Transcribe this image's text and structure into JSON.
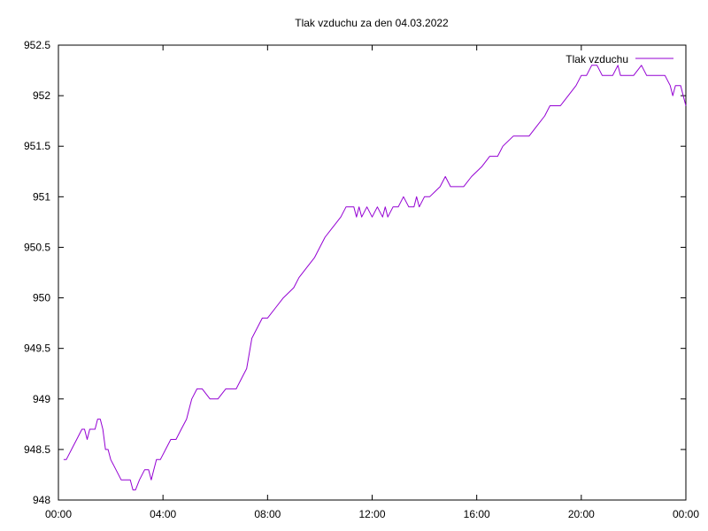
{
  "chart_data": {
    "type": "line",
    "title": "Tlak vzduchu za den 04.03.2022",
    "xlabel": "",
    "ylabel": "",
    "legend_position": "top-right",
    "grid": false,
    "line_color": "#9400d3",
    "xlim_hours": [
      0,
      24
    ],
    "x_tick_hours": [
      0,
      4,
      8,
      12,
      16,
      20,
      24
    ],
    "x_tick_labels": [
      "00:00",
      "04:00",
      "08:00",
      "12:00",
      "16:00",
      "20:00",
      "00:00"
    ],
    "ylim": [
      948,
      952.5
    ],
    "y_ticks": [
      948,
      948.5,
      949,
      949.5,
      950,
      950.5,
      951,
      951.5,
      952,
      952.5
    ],
    "y_tick_labels": [
      "948",
      "948.5",
      "949",
      "949.5",
      "950",
      "950.5",
      "951",
      "951.5",
      "952",
      "952.5"
    ],
    "series": [
      {
        "name": "Tlak vzduchu",
        "x_hours": [
          0.2,
          0.3,
          0.5,
          0.7,
          0.9,
          1.0,
          1.1,
          1.2,
          1.4,
          1.5,
          1.6,
          1.7,
          1.8,
          1.9,
          2.0,
          2.2,
          2.4,
          2.6,
          2.75,
          2.85,
          2.95,
          3.1,
          3.3,
          3.45,
          3.55,
          3.65,
          3.75,
          3.9,
          4.1,
          4.3,
          4.5,
          4.7,
          4.9,
          5.0,
          5.1,
          5.3,
          5.5,
          5.8,
          6.1,
          6.4,
          6.8,
          7.0,
          7.2,
          7.4,
          7.8,
          8.0,
          8.3,
          8.6,
          9.0,
          9.2,
          9.5,
          9.8,
          10.0,
          10.2,
          10.5,
          10.8,
          11.0,
          11.2,
          11.3,
          11.4,
          11.5,
          11.6,
          11.8,
          12.0,
          12.2,
          12.4,
          12.5,
          12.6,
          12.8,
          13.0,
          13.2,
          13.4,
          13.6,
          13.7,
          13.8,
          14.0,
          14.2,
          14.4,
          14.6,
          14.8,
          15.0,
          15.1,
          15.2,
          15.3,
          15.5,
          15.8,
          16.2,
          16.5,
          16.8,
          17.0,
          17.4,
          17.6,
          17.8,
          18.0,
          18.3,
          18.6,
          18.8,
          19.0,
          19.2,
          19.5,
          19.8,
          20.0,
          20.2,
          20.4,
          20.6,
          20.8,
          21.0,
          21.2,
          21.4,
          21.5,
          21.7,
          22.0,
          22.3,
          22.5,
          22.7,
          22.8,
          23.0,
          23.2,
          23.4,
          23.5,
          23.6,
          23.7,
          23.8,
          23.9,
          24.0
        ],
        "values": [
          948.4,
          948.4,
          948.5,
          948.6,
          948.7,
          948.7,
          948.6,
          948.7,
          948.7,
          948.8,
          948.8,
          948.7,
          948.5,
          948.5,
          948.4,
          948.3,
          948.2,
          948.2,
          948.2,
          948.1,
          948.1,
          948.2,
          948.3,
          948.3,
          948.2,
          948.3,
          948.4,
          948.4,
          948.5,
          948.6,
          948.6,
          948.7,
          948.8,
          948.9,
          949.0,
          949.1,
          949.1,
          949.0,
          949.0,
          949.1,
          949.1,
          949.2,
          949.3,
          949.6,
          949.8,
          949.8,
          949.9,
          950.0,
          950.1,
          950.2,
          950.3,
          950.4,
          950.5,
          950.6,
          950.7,
          950.8,
          950.9,
          950.9,
          950.9,
          950.8,
          950.9,
          950.8,
          950.9,
          950.8,
          950.9,
          950.8,
          950.9,
          950.8,
          950.9,
          950.9,
          951.0,
          950.9,
          950.9,
          951.0,
          950.9,
          951.0,
          951.0,
          951.05,
          951.1,
          951.2,
          951.1,
          951.1,
          951.1,
          951.1,
          951.1,
          951.2,
          951.3,
          951.4,
          951.4,
          951.5,
          951.6,
          951.6,
          951.6,
          951.6,
          951.7,
          951.8,
          951.9,
          951.9,
          951.9,
          952.0,
          952.1,
          952.2,
          952.2,
          952.3,
          952.3,
          952.2,
          952.2,
          952.2,
          952.3,
          952.2,
          952.2,
          952.2,
          952.3,
          952.2,
          952.2,
          952.2,
          952.2,
          952.2,
          952.1,
          952.0,
          952.1,
          952.1,
          952.1,
          952.0,
          951.9
        ]
      }
    ]
  }
}
